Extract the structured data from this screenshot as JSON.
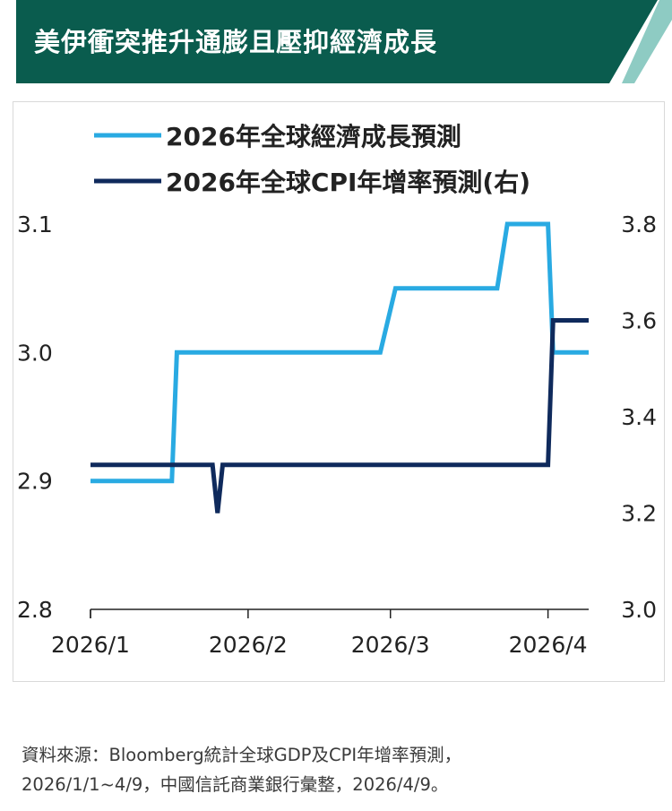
{
  "header": {
    "title": "美伊衝突推升通膨且壓抑經濟成長",
    "bg_color": "#0a5c4e",
    "stripe_color": "#8ecbc3"
  },
  "chart_data": {
    "type": "line",
    "x_dates": [
      "2026/1/1",
      "2026/1/17",
      "2026/1/18",
      "2026/1/25",
      "2026/1/26",
      "2026/1/27",
      "2026/2/27",
      "2026/3/1",
      "2026/3/2",
      "2026/3/22",
      "2026/3/24",
      "2026/4/1",
      "2026/4/2",
      "2026/4/9"
    ],
    "series": [
      {
        "name": "2026年全球經濟成長預測",
        "axis": "left",
        "color": "#29aae2",
        "points": [
          [
            "2026/1/1",
            2.9
          ],
          [
            "2026/1/17",
            2.9
          ],
          [
            "2026/1/18",
            3.0
          ],
          [
            "2026/2/27",
            3.0
          ],
          [
            "2026/3/2",
            3.05
          ],
          [
            "2026/3/22",
            3.05
          ],
          [
            "2026/3/24",
            3.1
          ],
          [
            "2026/4/1",
            3.1
          ],
          [
            "2026/4/2",
            3.0
          ],
          [
            "2026/4/9",
            3.0
          ]
        ]
      },
      {
        "name": "2026年全球CPI年增率預測(右)",
        "axis": "right",
        "color": "#0f2a5c",
        "points": [
          [
            "2026/1/1",
            3.3
          ],
          [
            "2026/1/25",
            3.3
          ],
          [
            "2026/1/26",
            3.2
          ],
          [
            "2026/1/27",
            3.3
          ],
          [
            "2026/4/1",
            3.3
          ],
          [
            "2026/4/2",
            3.6
          ],
          [
            "2026/4/9",
            3.6
          ]
        ]
      }
    ],
    "x_ticks": [
      "2026/1",
      "2026/2",
      "2026/3",
      "2026/4"
    ],
    "x_range": [
      "2026/1/1",
      "2026/4/9"
    ],
    "y_left": {
      "ticks": [
        "2.8",
        "2.9",
        "3.0",
        "3.1"
      ],
      "lim": [
        2.8,
        3.1
      ]
    },
    "y_right": {
      "ticks": [
        "3.0",
        "3.2",
        "3.4",
        "3.6",
        "3.8"
      ],
      "lim": [
        3.0,
        3.8
      ]
    },
    "legend_position": "top",
    "grid": false
  },
  "source": {
    "line1": "資料來源：Bloomberg統計全球GDP及CPI年增率預測，",
    "line2": "2026/1/1~4/9，中國信託商業銀行彙整，2026/4/9。"
  }
}
